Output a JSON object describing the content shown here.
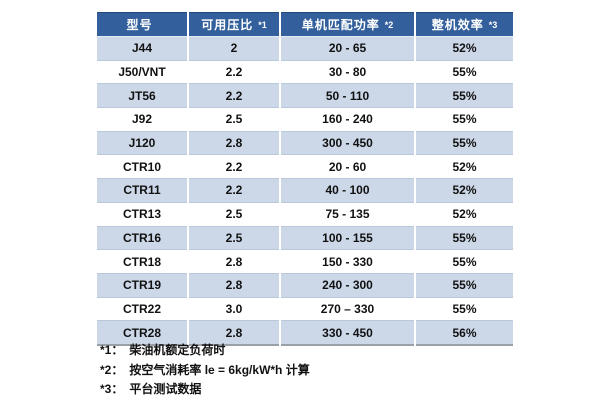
{
  "table": {
    "headers": [
      {
        "label": "型号",
        "marker": ""
      },
      {
        "label": "可用压比",
        "marker": "*1"
      },
      {
        "label": "单机匹配功率",
        "marker": "*2"
      },
      {
        "label": "整机效率",
        "marker": "*3"
      }
    ],
    "rows": [
      [
        "J44",
        "2",
        "20 - 65",
        "52%"
      ],
      [
        "J50/VNT",
        "2.2",
        "30 - 80",
        "55%"
      ],
      [
        "JT56",
        "2.2",
        "50 - 110",
        "55%"
      ],
      [
        "J92",
        "2.5",
        "160 - 240",
        "55%"
      ],
      [
        "J120",
        "2.8",
        "300 - 450",
        "55%"
      ],
      [
        "CTR10",
        "2.2",
        "20 - 60",
        "52%"
      ],
      [
        "CTR11",
        "2.2",
        "40 - 100",
        "52%"
      ],
      [
        "CTR13",
        "2.5",
        "75 - 135",
        "52%"
      ],
      [
        "CTR16",
        "2.5",
        "100 - 155",
        "55%"
      ],
      [
        "CTR18",
        "2.8",
        "150 - 330",
        "55%"
      ],
      [
        "CTR19",
        "2.8",
        "240 - 300",
        "55%"
      ],
      [
        "CTR22",
        "3.0",
        "270 – 330",
        "55%"
      ],
      [
        "CTR28",
        "2.8",
        "330 - 450",
        "56%"
      ]
    ]
  },
  "footnotes": [
    {
      "marker": "*1：",
      "text": "柴油机额定负荷时"
    },
    {
      "marker": "*2：",
      "text": "按空气消耗率 le = 6kg/kW*h 计算"
    },
    {
      "marker": "*3：",
      "text": "平台测试数据"
    }
  ],
  "colors": {
    "header_bg": "#33609C",
    "row_alt_bg": "#CCD8E8",
    "row_bg": "#FFFFFF",
    "row_border": "#B8C9DE",
    "table_bottom_border": "#9AA0A8",
    "header_text": "#FFFFFF",
    "cell_text": "#111111"
  }
}
